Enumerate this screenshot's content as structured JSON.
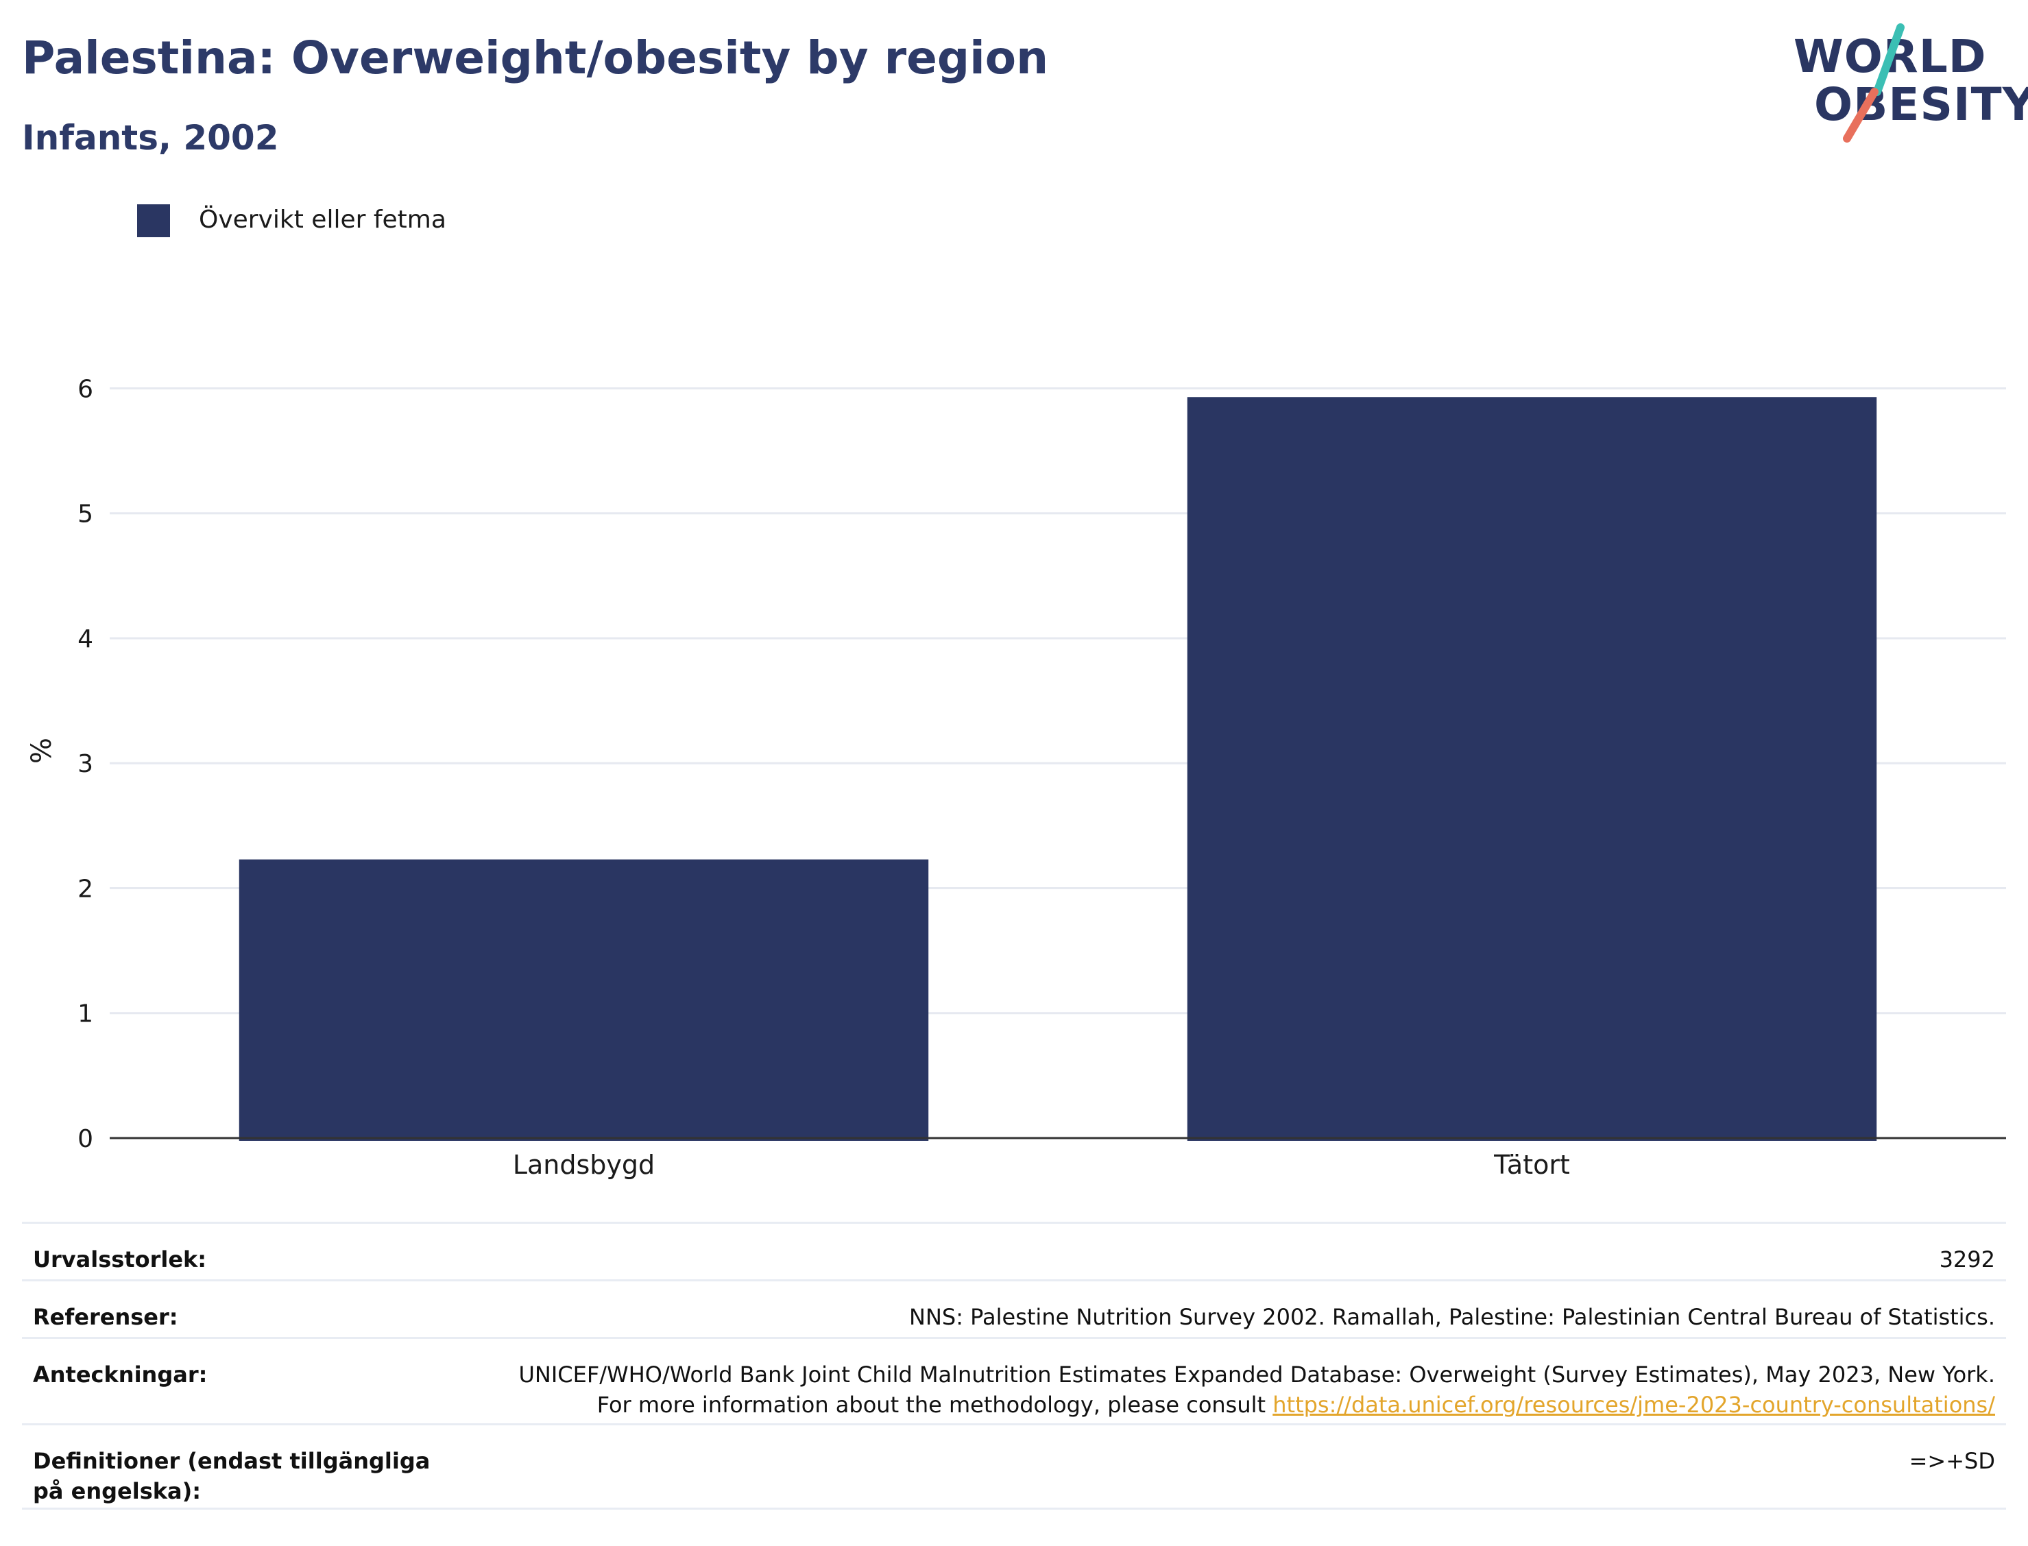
{
  "header": {
    "title": "Palestina: Overweight/obesity by region",
    "subtitle": "Infants, 2002"
  },
  "logo": {
    "line1": "WORLD",
    "line2": "OBESITY",
    "accent_teal": "#3bbfb4",
    "accent_coral": "#e8705c"
  },
  "legend": {
    "label": "Övervikt eller fetma",
    "color": "#2a3662"
  },
  "chart_data": {
    "type": "bar",
    "categories": [
      "Landsbygd",
      "Tätort"
    ],
    "series": [
      {
        "name": "Övervikt eller fetma",
        "values": [
          2.23,
          5.93
        ],
        "color": "#2a3662"
      }
    ],
    "ylabel": "%",
    "xlabel": "",
    "ylim": [
      0,
      6.2
    ],
    "yticks": [
      0,
      1,
      2,
      3,
      4,
      5,
      6
    ],
    "grid": true,
    "legend_position": "top-left"
  },
  "info": {
    "rows": [
      {
        "key": "Urvalsstorlek:",
        "value": "3292"
      },
      {
        "key": "Referenser:",
        "value": "NNS: Palestine Nutrition Survey 2002. Ramallah, Palestine: Palestinian Central Bureau of Statistics."
      },
      {
        "key": "Anteckningar:",
        "value": "UNICEF/WHO/World Bank Joint Child Malnutrition Estimates Expanded Database: Overweight (Survey Estimates), May 2023, New York. For more information about the methodology, please consult",
        "link": "https://data.unicef.org/resources/jme-2023-country-consultations/"
      },
      {
        "key": "Definitioner (endast tillgängliga på engelska):",
        "value": "=>+SD"
      }
    ]
  }
}
